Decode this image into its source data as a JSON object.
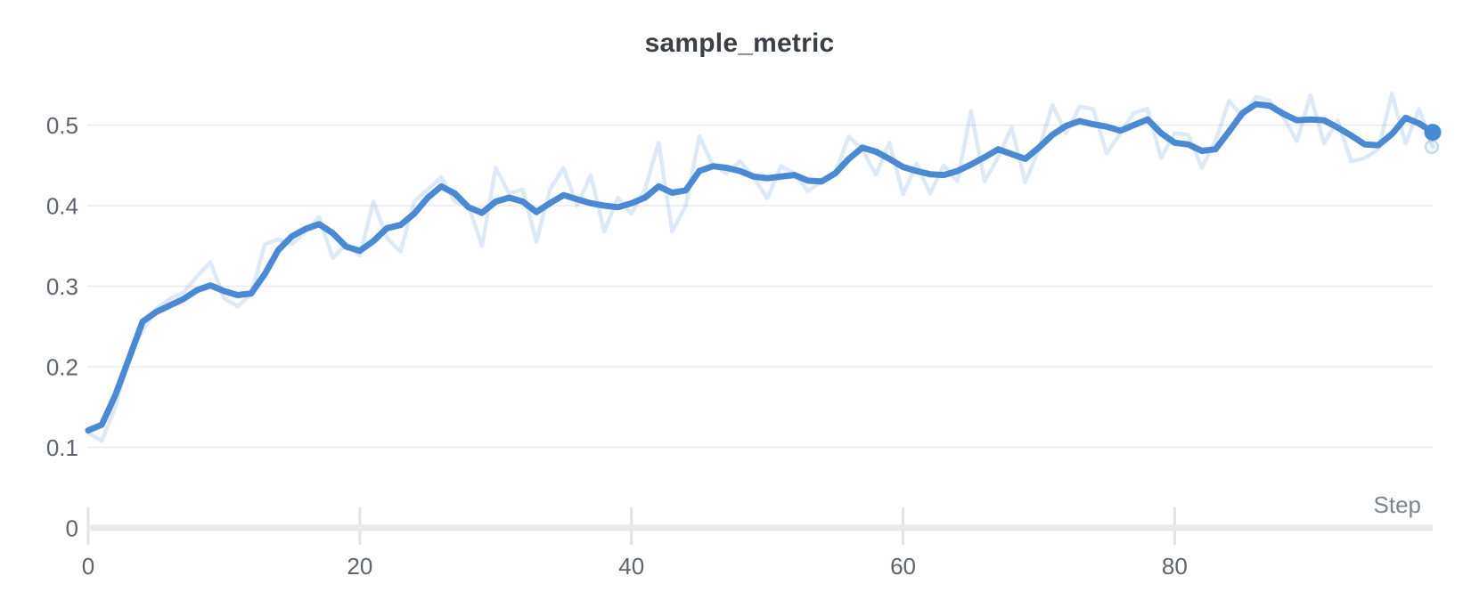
{
  "chart_data": {
    "type": "line",
    "title": "sample_metric",
    "xlabel": "Step",
    "ylabel": "",
    "x": [
      0,
      1,
      2,
      3,
      4,
      5,
      6,
      7,
      8,
      9,
      10,
      11,
      12,
      13,
      14,
      15,
      16,
      17,
      18,
      19,
      20,
      21,
      22,
      23,
      24,
      25,
      26,
      27,
      28,
      29,
      30,
      31,
      32,
      33,
      34,
      35,
      36,
      37,
      38,
      39,
      40,
      41,
      42,
      43,
      44,
      45,
      46,
      47,
      48,
      49,
      50,
      51,
      52,
      53,
      54,
      55,
      56,
      57,
      58,
      59,
      60,
      61,
      62,
      63,
      64,
      65,
      66,
      67,
      68,
      69,
      70,
      71,
      72,
      73,
      74,
      75,
      76,
      77,
      78,
      79,
      80,
      81,
      82,
      83,
      84,
      85,
      86,
      87,
      88,
      89,
      90,
      91,
      92,
      93,
      94,
      95,
      96,
      97,
      98,
      99
    ],
    "series": [
      {
        "name": "sample_metric (raw)",
        "role": "raw",
        "color": "rgba(74,138,210,0.19)",
        "stroke_width": 4.5,
        "values": [
          0.118,
          0.108,
          0.15,
          0.21,
          0.245,
          0.272,
          0.284,
          0.292,
          0.312,
          0.33,
          0.285,
          0.275,
          0.29,
          0.352,
          0.358,
          0.352,
          0.368,
          0.386,
          0.335,
          0.352,
          0.338,
          0.405,
          0.36,
          0.343,
          0.405,
          0.42,
          0.435,
          0.405,
          0.4,
          0.35,
          0.447,
          0.415,
          0.42,
          0.355,
          0.42,
          0.447,
          0.4,
          0.438,
          0.368,
          0.41,
          0.39,
          0.42,
          0.478,
          0.368,
          0.4,
          0.486,
          0.45,
          0.44,
          0.455,
          0.435,
          0.409,
          0.449,
          0.44,
          0.418,
          0.43,
          0.44,
          0.486,
          0.47,
          0.438,
          0.478,
          0.414,
          0.452,
          0.415,
          0.45,
          0.43,
          0.517,
          0.43,
          0.46,
          0.497,
          0.429,
          0.47,
          0.525,
          0.49,
          0.523,
          0.52,
          0.465,
          0.49,
          0.515,
          0.52,
          0.459,
          0.49,
          0.488,
          0.447,
          0.48,
          0.53,
          0.51,
          0.535,
          0.53,
          0.51,
          0.48,
          0.537,
          0.477,
          0.506,
          0.455,
          0.459,
          0.47,
          0.539,
          0.477,
          0.52,
          0.473
        ]
      },
      {
        "name": "sample_metric (smoothed)",
        "role": "smoothed",
        "color": "#4a8ad2",
        "stroke_width": 7,
        "values": [
          0.121,
          0.128,
          0.165,
          0.21,
          0.256,
          0.268,
          0.276,
          0.284,
          0.295,
          0.301,
          0.294,
          0.289,
          0.291,
          0.315,
          0.345,
          0.362,
          0.371,
          0.377,
          0.366,
          0.349,
          0.344,
          0.356,
          0.372,
          0.376,
          0.39,
          0.41,
          0.424,
          0.415,
          0.398,
          0.391,
          0.405,
          0.41,
          0.405,
          0.392,
          0.403,
          0.413,
          0.408,
          0.403,
          0.4,
          0.398,
          0.403,
          0.41,
          0.424,
          0.416,
          0.419,
          0.443,
          0.449,
          0.447,
          0.443,
          0.436,
          0.434,
          0.436,
          0.438,
          0.431,
          0.43,
          0.44,
          0.458,
          0.472,
          0.467,
          0.458,
          0.448,
          0.443,
          0.439,
          0.438,
          0.443,
          0.451,
          0.46,
          0.47,
          0.464,
          0.458,
          0.472,
          0.488,
          0.499,
          0.505,
          0.501,
          0.498,
          0.493,
          0.5,
          0.507,
          0.49,
          0.478,
          0.476,
          0.468,
          0.47,
          0.492,
          0.515,
          0.526,
          0.524,
          0.514,
          0.506,
          0.507,
          0.506,
          0.497,
          0.487,
          0.476,
          0.475,
          0.489,
          0.509,
          0.502,
          0.491
        ]
      }
    ],
    "xticks": [
      0,
      20,
      40,
      60,
      80
    ],
    "yticks": [
      0,
      0.1,
      0.2,
      0.3,
      0.4,
      0.5
    ],
    "xlim": [
      0,
      99
    ],
    "ylim": [
      0,
      0.55
    ],
    "grid": "horizontal",
    "legend": "none",
    "last_point": {
      "smoothed": 0.491,
      "raw": 0.473
    },
    "colors": {
      "line": "#4a8ad2",
      "raw_line": "rgba(74,138,210,0.19)",
      "title_text": "#3a4045",
      "tick_text": "#5d6470",
      "axis_label_text": "#7b8290",
      "gridline": "#e9eaec",
      "axis_bar": "#e8e9eb",
      "tick_mark": "#e2e3e6",
      "background": "#ffffff"
    }
  }
}
